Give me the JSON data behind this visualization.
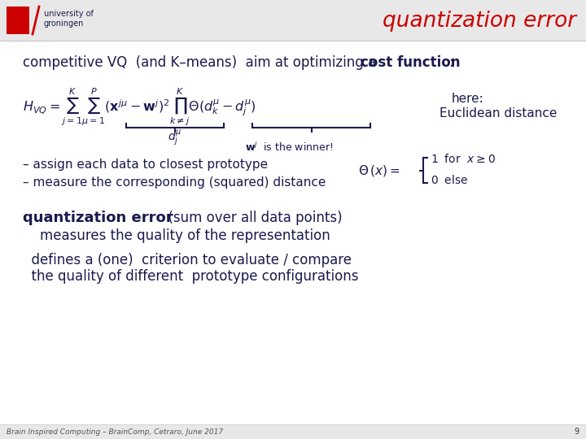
{
  "title": "quantization error",
  "title_color": "#cc0000",
  "slide_bg": "#ffffff",
  "header_bg": "#e8e8e8",
  "dark_blue": "#1a1a4e",
  "red": "#cc0000",
  "footer_text": "Brain Inspired Computing – BrainComp, Cetraro, June 2017",
  "page_number": "9",
  "line1_normal": "competitive VQ  (and K–means)  aim at optimizing a  ",
  "line1_bold": "cost function",
  "line1_colon": ":",
  "here_text": "here:",
  "euclidean_text": "Euclidean distance",
  "assign_text": "– assign each data to closest prototype",
  "measure_text": "– measure the corresponding (squared) distance",
  "quant_bold": "quantization error",
  "quant_rest": "  (sum over all data points)",
  "measures_text": "    measures the quality of the representation",
  "defines_text": "  defines a (one)  criterion to evaluate / compare",
  "quality_text": "  the quality of different  prototype configurations"
}
